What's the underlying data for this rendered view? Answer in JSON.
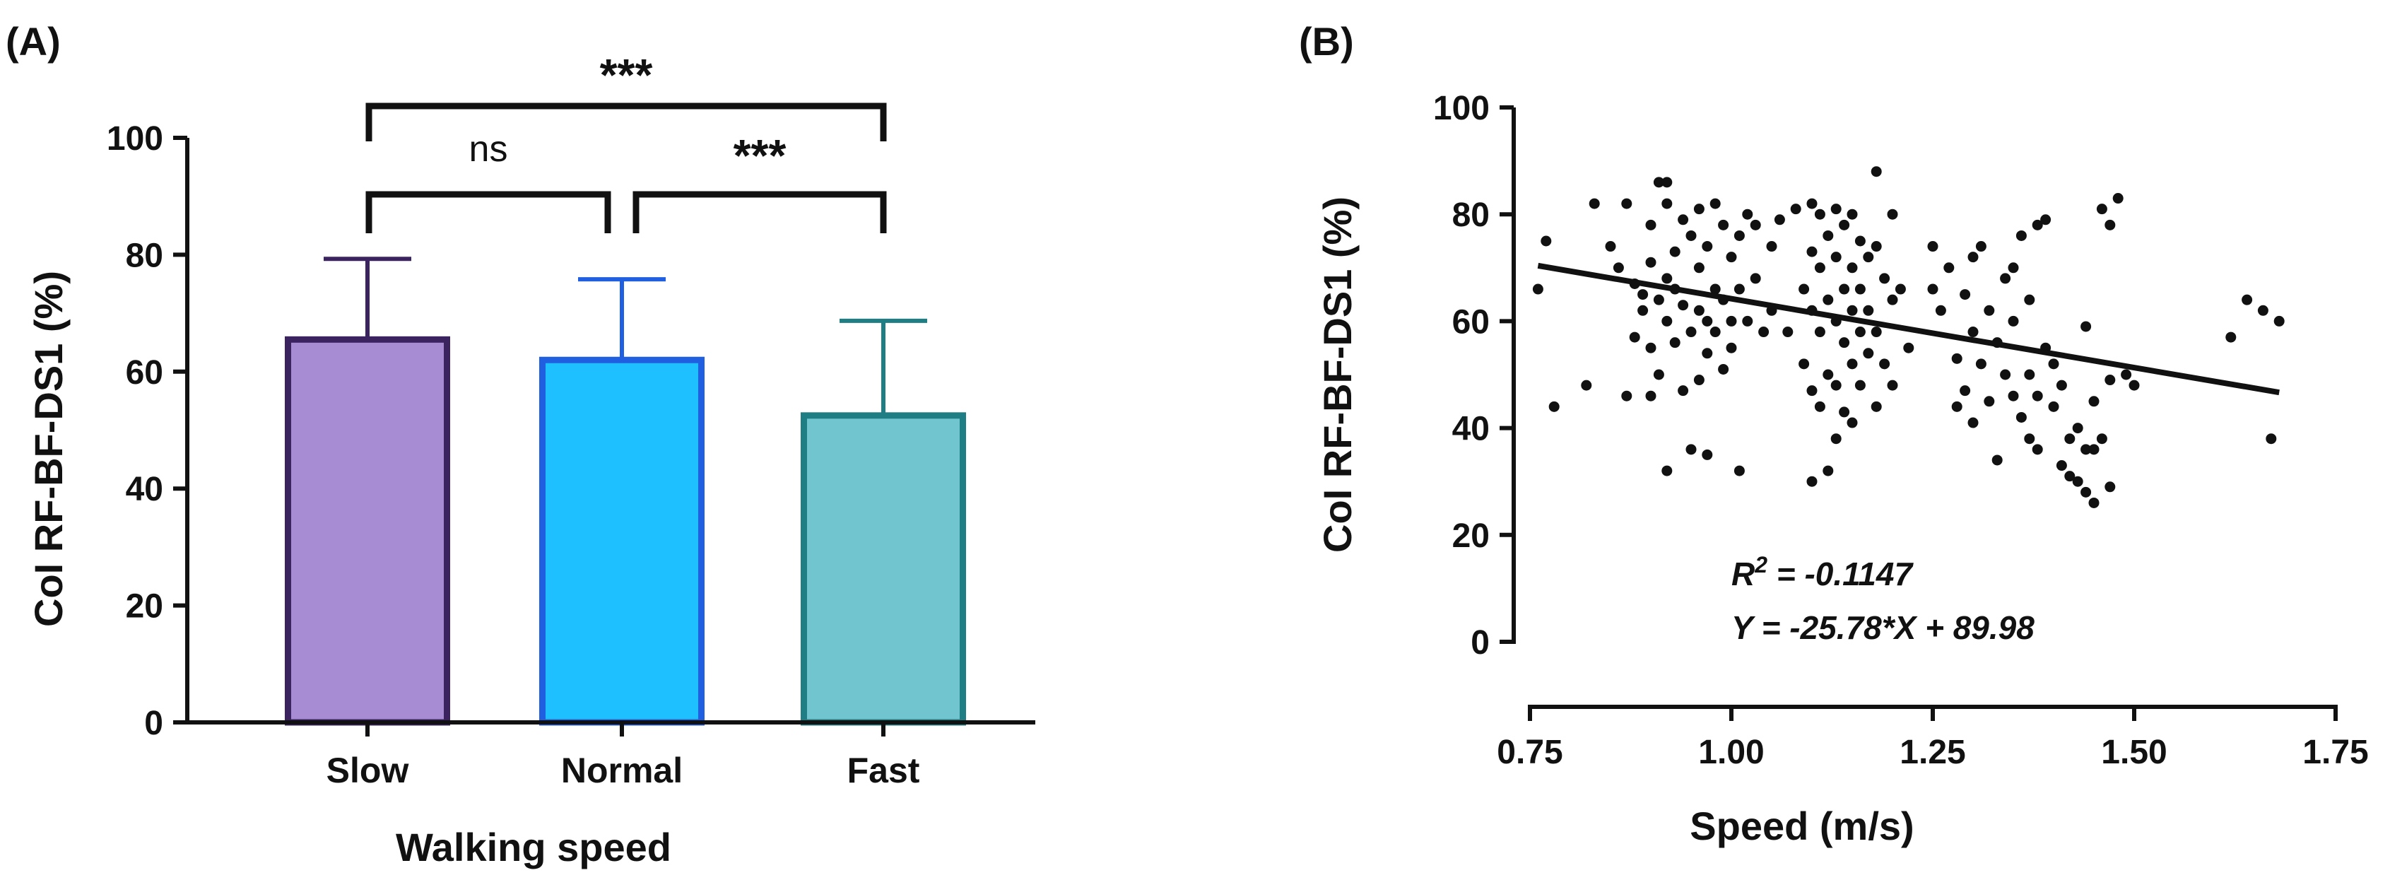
{
  "chart_data": [
    {
      "panel": "(A)",
      "type": "bar",
      "categories": [
        "Slow",
        "Normal",
        "Fast"
      ],
      "values": [
        65.5,
        62.0,
        52.5
      ],
      "error": [
        13.8,
        13.8,
        16.2
      ],
      "colors": {
        "fill": [
          "#a78bd3",
          "#1ec0ff",
          "#70c5cf"
        ],
        "stroke": [
          "#3b2360",
          "#1f5fe0",
          "#1f7d84"
        ]
      },
      "xlabel": "Walking speed",
      "ylabel": "CoI RF-BF-DS1 (%)",
      "ylim": [
        0,
        100
      ],
      "yticks": [
        "0",
        "20",
        "40",
        "60",
        "80",
        "100"
      ],
      "significance": [
        {
          "from": "Slow",
          "to": "Normal",
          "label": "ns"
        },
        {
          "from": "Normal",
          "to": "Fast",
          "label": "***"
        },
        {
          "from": "Slow",
          "to": "Fast",
          "label": "***"
        }
      ]
    },
    {
      "panel": "(B)",
      "type": "scatter",
      "xlabel": "Speed (m/s)",
      "ylabel": "CoI RF-BF-DS1 (%)",
      "xlim": [
        0.75,
        1.75
      ],
      "ylim": [
        0,
        100
      ],
      "xticks": [
        "0.75",
        "1.00",
        "1.25",
        "1.50",
        "1.75"
      ],
      "yticks": [
        "0",
        "20",
        "40",
        "60",
        "80",
        "100"
      ],
      "regression": {
        "slope": -25.78,
        "intercept": 89.98,
        "x_range": [
          0.76,
          1.68
        ]
      },
      "annotation_r2_prefix": "R",
      "annotation_r2_sup": "2",
      "annotation_r2_value": " = -0.1147",
      "annotation_eq": "Y = -25.78*X + 89.98",
      "point_color": "#111111",
      "points": [
        [
          0.76,
          66
        ],
        [
          0.77,
          75
        ],
        [
          0.78,
          44
        ],
        [
          0.82,
          48
        ],
        [
          0.83,
          82
        ],
        [
          0.85,
          74
        ],
        [
          0.86,
          70
        ],
        [
          0.87,
          82
        ],
        [
          0.87,
          46
        ],
        [
          0.88,
          67
        ],
        [
          0.88,
          57
        ],
        [
          0.89,
          65
        ],
        [
          0.89,
          62
        ],
        [
          0.9,
          78
        ],
        [
          0.9,
          71
        ],
        [
          0.9,
          55
        ],
        [
          0.9,
          46
        ],
        [
          0.91,
          86
        ],
        [
          0.91,
          64
        ],
        [
          0.91,
          50
        ],
        [
          0.92,
          86
        ],
        [
          0.92,
          82
        ],
        [
          0.92,
          68
        ],
        [
          0.92,
          60
        ],
        [
          0.92,
          32
        ],
        [
          0.93,
          73
        ],
        [
          0.93,
          66
        ],
        [
          0.93,
          56
        ],
        [
          0.94,
          79
        ],
        [
          0.94,
          63
        ],
        [
          0.94,
          47
        ],
        [
          0.95,
          76
        ],
        [
          0.95,
          58
        ],
        [
          0.95,
          36
        ],
        [
          0.96,
          81
        ],
        [
          0.96,
          70
        ],
        [
          0.96,
          62
        ],
        [
          0.96,
          49
        ],
        [
          0.97,
          74
        ],
        [
          0.97,
          60
        ],
        [
          0.97,
          54
        ],
        [
          0.97,
          35
        ],
        [
          0.98,
          82
        ],
        [
          0.98,
          66
        ],
        [
          0.98,
          58
        ],
        [
          0.99,
          78
        ],
        [
          0.99,
          64
        ],
        [
          0.99,
          51
        ],
        [
          1.0,
          72
        ],
        [
          1.0,
          60
        ],
        [
          1.0,
          55
        ],
        [
          1.01,
          76
        ],
        [
          1.01,
          66
        ],
        [
          1.01,
          32
        ],
        [
          1.02,
          80
        ],
        [
          1.02,
          60
        ],
        [
          1.03,
          78
        ],
        [
          1.03,
          68
        ],
        [
          1.04,
          58
        ],
        [
          1.05,
          74
        ],
        [
          1.05,
          62
        ],
        [
          1.06,
          79
        ],
        [
          1.07,
          58
        ],
        [
          1.08,
          81
        ],
        [
          1.09,
          66
        ],
        [
          1.09,
          52
        ],
        [
          1.1,
          82
        ],
        [
          1.1,
          73
        ],
        [
          1.1,
          62
        ],
        [
          1.1,
          47
        ],
        [
          1.1,
          30
        ],
        [
          1.11,
          80
        ],
        [
          1.11,
          70
        ],
        [
          1.11,
          58
        ],
        [
          1.11,
          44
        ],
        [
          1.12,
          76
        ],
        [
          1.12,
          64
        ],
        [
          1.12,
          50
        ],
        [
          1.12,
          32
        ],
        [
          1.13,
          81
        ],
        [
          1.13,
          72
        ],
        [
          1.13,
          60
        ],
        [
          1.13,
          48
        ],
        [
          1.13,
          38
        ],
        [
          1.14,
          78
        ],
        [
          1.14,
          66
        ],
        [
          1.14,
          56
        ],
        [
          1.14,
          43
        ],
        [
          1.15,
          80
        ],
        [
          1.15,
          70
        ],
        [
          1.15,
          62
        ],
        [
          1.15,
          52
        ],
        [
          1.15,
          41
        ],
        [
          1.16,
          75
        ],
        [
          1.16,
          66
        ],
        [
          1.16,
          58
        ],
        [
          1.16,
          48
        ],
        [
          1.17,
          72
        ],
        [
          1.17,
          62
        ],
        [
          1.17,
          54
        ],
        [
          1.18,
          88
        ],
        [
          1.18,
          74
        ],
        [
          1.18,
          58
        ],
        [
          1.18,
          44
        ],
        [
          1.19,
          68
        ],
        [
          1.19,
          52
        ],
        [
          1.2,
          80
        ],
        [
          1.2,
          64
        ],
        [
          1.2,
          48
        ],
        [
          1.21,
          66
        ],
        [
          1.22,
          55
        ],
        [
          1.25,
          74
        ],
        [
          1.25,
          66
        ],
        [
          1.26,
          62
        ],
        [
          1.27,
          70
        ],
        [
          1.28,
          53
        ],
        [
          1.28,
          44
        ],
        [
          1.29,
          65
        ],
        [
          1.29,
          47
        ],
        [
          1.3,
          72
        ],
        [
          1.3,
          58
        ],
        [
          1.3,
          41
        ],
        [
          1.31,
          74
        ],
        [
          1.31,
          52
        ],
        [
          1.32,
          62
        ],
        [
          1.32,
          45
        ],
        [
          1.33,
          56
        ],
        [
          1.33,
          34
        ],
        [
          1.34,
          68
        ],
        [
          1.34,
          50
        ],
        [
          1.35,
          70
        ],
        [
          1.35,
          60
        ],
        [
          1.35,
          46
        ],
        [
          1.36,
          76
        ],
        [
          1.36,
          42
        ],
        [
          1.37,
          64
        ],
        [
          1.37,
          50
        ],
        [
          1.37,
          38
        ],
        [
          1.38,
          78
        ],
        [
          1.38,
          46
        ],
        [
          1.38,
          36
        ],
        [
          1.39,
          79
        ],
        [
          1.39,
          55
        ],
        [
          1.4,
          52
        ],
        [
          1.4,
          44
        ],
        [
          1.41,
          48
        ],
        [
          1.41,
          33
        ],
        [
          1.42,
          38
        ],
        [
          1.42,
          31
        ],
        [
          1.43,
          40
        ],
        [
          1.43,
          30
        ],
        [
          1.44,
          59
        ],
        [
          1.44,
          36
        ],
        [
          1.44,
          28
        ],
        [
          1.45,
          45
        ],
        [
          1.45,
          36
        ],
        [
          1.45,
          26
        ],
        [
          1.46,
          81
        ],
        [
          1.46,
          38
        ],
        [
          1.47,
          78
        ],
        [
          1.47,
          49
        ],
        [
          1.47,
          29
        ],
        [
          1.48,
          83
        ],
        [
          1.49,
          50
        ],
        [
          1.5,
          48
        ],
        [
          1.62,
          57
        ],
        [
          1.64,
          64
        ],
        [
          1.66,
          62
        ],
        [
          1.67,
          38
        ],
        [
          1.68,
          60
        ]
      ]
    }
  ]
}
